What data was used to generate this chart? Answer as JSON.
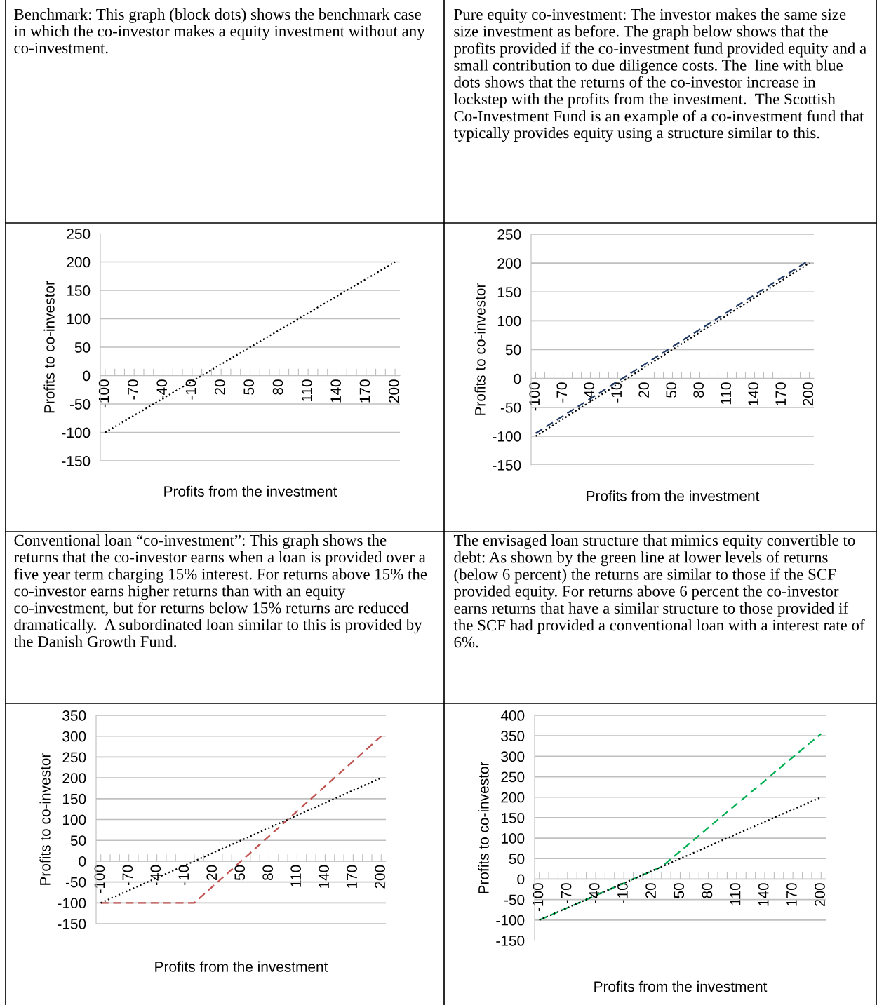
{
  "chart_data": [
    {
      "type": "line",
      "annotations": [
        "Benchmark: This graph (block dots) shows the benchmark case in which the co-investor makes a equity investment without any co-investment."
      ],
      "xlabel": "Profits from the investment",
      "ylabel": "Profits to co-investor",
      "categories": [
        "-100",
        null,
        null,
        "-70",
        null,
        null,
        "-40",
        null,
        null,
        "-10",
        null,
        null,
        "20",
        null,
        null,
        "50",
        null,
        null,
        "80",
        null,
        null,
        "110",
        null,
        null,
        "140",
        null,
        null,
        "170",
        null,
        null,
        "200"
      ],
      "series": [
        {
          "color": "#000000",
          "line_style": "dotted",
          "values": [
            -100,
            -90,
            -80,
            -70,
            -60,
            -50,
            -40,
            -30,
            -20,
            -10,
            0,
            10,
            20,
            30,
            40,
            50,
            60,
            70,
            80,
            90,
            100,
            110,
            120,
            130,
            140,
            150,
            160,
            170,
            180,
            190,
            200
          ]
        }
      ],
      "ylim": [
        -150,
        250
      ],
      "yticks": [
        -150,
        -100,
        -50,
        0,
        50,
        100,
        150,
        200,
        250
      ],
      "grid": "y",
      "legend": false
    },
    {
      "type": "line",
      "annotations": [
        "Pure equity co-investment: The investor makes the same size size investment as before. The graph below shows that the profits provided if the co-investment fund provided equity and a small contribution to due diligence costs. The  line with blue dots shows that the returns of the co-investor increase in lockstep with the profits from the investment.  The Scottish Co-Investment Fund is an example of a co-investment fund that typically provides equity using a structure similar to this."
      ],
      "xlabel": "Profits from the investment",
      "ylabel": "Profits to co-investor",
      "categories": [
        "-100",
        null,
        null,
        "-70",
        null,
        null,
        "-40",
        null,
        null,
        "-10",
        null,
        null,
        "20",
        null,
        null,
        "50",
        null,
        null,
        "80",
        null,
        null,
        "110",
        null,
        null,
        "140",
        null,
        null,
        "170",
        null,
        null,
        "200"
      ],
      "series": [
        {
          "color": "#000000",
          "line_style": "dotted",
          "values": [
            -100,
            -90,
            -80,
            -70,
            -60,
            -50,
            -40,
            -30,
            -20,
            -10,
            0,
            10,
            20,
            30,
            40,
            50,
            60,
            70,
            80,
            90,
            100,
            110,
            120,
            130,
            140,
            150,
            160,
            170,
            180,
            190,
            200
          ]
        },
        {
          "color": "#1f3864",
          "line_style": "dashed",
          "values": [
            -95,
            -85,
            -75,
            -65,
            -55,
            -45,
            -35,
            -25,
            -15,
            -5,
            5,
            15,
            25,
            35,
            45,
            55,
            65,
            75,
            85,
            95,
            105,
            115,
            125,
            135,
            145,
            155,
            165,
            175,
            185,
            195,
            205
          ]
        }
      ],
      "ylim": [
        -150,
        250
      ],
      "yticks": [
        -150,
        -100,
        -50,
        0,
        50,
        100,
        150,
        200,
        250
      ],
      "grid": "y",
      "legend": false
    },
    {
      "type": "line",
      "annotations": [
        "Conventional loan “co-investment”: This graph shows the returns that the co-investor earns when a loan is provided over a five year term charging 15% interest. For returns above 15% the co-investor earns higher returns than with an equity co-investment, but for returns below 15% returns are reduced dramatically.  A subordinated loan similar to this is provided by the Danish Growth Fund."
      ],
      "xlabel": "Profits from the investment",
      "ylabel": "Profits to co-investor",
      "categories": [
        "-100",
        null,
        null,
        "-70",
        null,
        null,
        "-40",
        null,
        null,
        "-10",
        null,
        null,
        "20",
        null,
        null,
        "50",
        null,
        null,
        "80",
        null,
        null,
        "110",
        null,
        null,
        "140",
        null,
        null,
        "170",
        null,
        null,
        "200"
      ],
      "series": [
        {
          "color": "#000000",
          "line_style": "dotted",
          "values": [
            -100,
            -90,
            -80,
            -70,
            -60,
            -50,
            -40,
            -30,
            -20,
            -10,
            0,
            10,
            20,
            30,
            40,
            50,
            60,
            70,
            80,
            90,
            100,
            110,
            120,
            130,
            140,
            150,
            160,
            170,
            180,
            190,
            200
          ]
        },
        {
          "color": "#c0504d",
          "line_style": "dashed",
          "values": [
            -100,
            -100,
            -100,
            -100,
            -100,
            -100,
            -100,
            -100,
            -100,
            -100,
            -100,
            -80,
            -60,
            -40,
            -20,
            0,
            20,
            40,
            60,
            80,
            100,
            120,
            140,
            160,
            180,
            200,
            220,
            240,
            260,
            280,
            300
          ]
        }
      ],
      "ylim": [
        -150,
        350
      ],
      "yticks": [
        -150,
        -100,
        -50,
        0,
        50,
        100,
        150,
        200,
        250,
        300,
        350
      ],
      "grid": "y",
      "legend": false
    },
    {
      "type": "line",
      "annotations": [
        "The envisaged loan structure that mimics equity convertible to debt: As shown by the green line at lower levels of returns (below 6 percent) the returns are similar to those if the SCF provided equity. For returns above 6 percent the co-investor earns returns that have a similar structure to those provided if the SCF had provided a conventional loan with a interest rate of 6%."
      ],
      "xlabel": "Profits from the investment",
      "ylabel": "Profits to co-investor",
      "categories": [
        "-100",
        null,
        null,
        "-70",
        null,
        null,
        "-40",
        null,
        null,
        "-10",
        null,
        null,
        "20",
        null,
        null,
        "50",
        null,
        null,
        "80",
        null,
        null,
        "110",
        null,
        null,
        "140",
        null,
        null,
        "170",
        null,
        null,
        "200"
      ],
      "series": [
        {
          "color": "#000000",
          "line_style": "dotted",
          "values": [
            -100,
            -90,
            -80,
            -70,
            -60,
            -50,
            -40,
            -30,
            -20,
            -10,
            0,
            10,
            20,
            30,
            40,
            50,
            60,
            70,
            80,
            90,
            100,
            110,
            120,
            130,
            140,
            150,
            160,
            170,
            180,
            190,
            200
          ]
        },
        {
          "color": "#00b050",
          "line_style": "dashed",
          "values": [
            -100,
            -90,
            -80,
            -70,
            -60,
            -50,
            -40,
            -30,
            -20,
            -10,
            0,
            10,
            20,
            30,
            49,
            68,
            87,
            106,
            126,
            145,
            164,
            183,
            202,
            221,
            240,
            260,
            279,
            298,
            317,
            336,
            355
          ]
        }
      ],
      "ylim": [
        -150,
        400
      ],
      "yticks": [
        -150,
        -100,
        -50,
        0,
        50,
        100,
        150,
        200,
        250,
        300,
        350,
        400
      ],
      "grid": "y",
      "legend": false
    }
  ]
}
